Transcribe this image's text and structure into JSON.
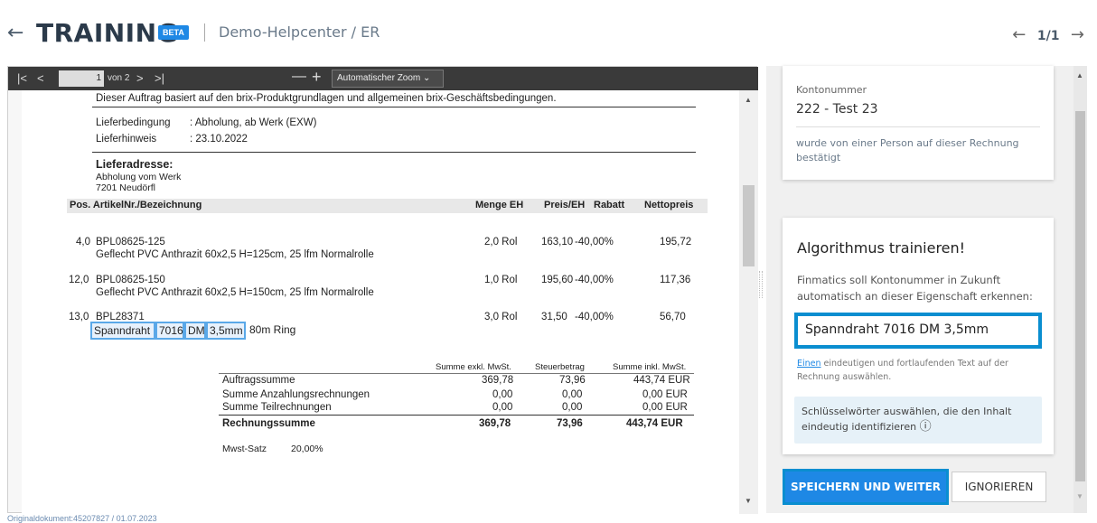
{
  "header": {
    "back_icon": "←",
    "title": "TRAINING",
    "badge": "BETA",
    "breadcrumb": "Demo-Helpcenter / ER",
    "prev_icon": "←",
    "page_counter": "1/1",
    "next_icon": "→"
  },
  "viewer": {
    "first_icon": "|<",
    "prev_icon": "<",
    "page_value": "1",
    "of_pages": "von 2",
    "next_icon": ">",
    "last_icon": ">|",
    "zoom_out": "—",
    "zoom_in": "+",
    "zoom_select": "Automatischer Zoom ⌄"
  },
  "document": {
    "intro": "Dieser Auftrag basiert auf den brix-Produktgrundlagen und allgemeinen brix-Geschäftsbedingungen.",
    "lieferbedingung_label": "Lieferbedingung",
    "lieferbedingung_value": ": Abholung,  ab Werk (EXW)",
    "lieferhinweis_label": "Lieferhinweis",
    "lieferhinweis_value": ": 23.10.2022",
    "lieferadresse_title": "Lieferadresse:",
    "addr_line1": "Abholung vom Werk",
    "addr_line2": "7201 Neudörfl",
    "table_headers": {
      "pos": "Pos. ArtikelNr./Bezeichnung",
      "menge": "Menge EH",
      "preis": "Preis/EH",
      "rabatt": "Rabatt",
      "netto": "Nettopreis"
    },
    "rows": [
      {
        "pos": "4,0",
        "art": "BPL08625-125",
        "desc": "Geflecht PVC Anthrazit 60x2,5 H=125cm, 25 lfm Normalrolle",
        "menge": "2,0 Rol",
        "preis": "163,10",
        "rabatt": "-40,00%",
        "netto": "195,72"
      },
      {
        "pos": "12,0",
        "art": "BPL08625-150",
        "desc": "Geflecht PVC Anthrazit 60x2,5 H=150cm, 25 lfm Normalrolle",
        "menge": "1,0 Rol",
        "preis": "195,60",
        "rabatt": "-40,00%",
        "netto": "117,36"
      },
      {
        "pos": "13,0",
        "art": "BPL28371",
        "desc": "80m Ring",
        "menge": "3,0 Rol",
        "preis": "31,50",
        "rabatt": "-40,00%",
        "netto": "56,70"
      }
    ],
    "highlights": [
      "Spanndraht",
      "7016",
      "DM",
      "3,5mm"
    ],
    "sum_headers": [
      "Summe exkl. MwSt.",
      "Steuerbetrag",
      "Summe inkl. MwSt."
    ],
    "sums": [
      {
        "label": "Auftragssumme",
        "a": "369,78",
        "b": "73,96",
        "c": "443,74 EUR"
      },
      {
        "label": "Summe Anzahlungsrechnungen",
        "a": "0,00",
        "b": "0,00",
        "c": "0,00 EUR"
      },
      {
        "label": "Summe Teilrechnungen",
        "a": "0,00",
        "b": "0,00",
        "c": "0,00 EUR"
      },
      {
        "label": "Rechnungssumme",
        "a": "369,78",
        "b": "73,96",
        "c": "443,74 EUR"
      }
    ],
    "mwst_label": "Mwst-Satz",
    "mwst_value": "20,00%"
  },
  "footnote": "Originaldokument:45207827 / 01.07.2023",
  "panel": {
    "konto_label": "Kontonummer",
    "konto_value": "222 - Test 23",
    "konto_note": "wurde von einer Person auf dieser Rechnung bestätigt",
    "train_title": "Algorithmus trainieren!",
    "train_desc": "Finmatics soll Kontonummer in Zukunft automatisch an dieser Eigenschaft erkennen:",
    "train_value": "Spanndraht 7016 DM 3,5mm",
    "select_link": "Einen",
    "select_rest": " eindeutigen und fortlaufenden Text auf der Rechnung auswählen.",
    "hint": "Schlüsselwörter auswählen, die den Inhalt eindeutig identifizieren",
    "info_icon": "ⓘ",
    "save_button": "SPEICHERN UND WEITER",
    "ignore_button": "IGNORIEREN"
  }
}
